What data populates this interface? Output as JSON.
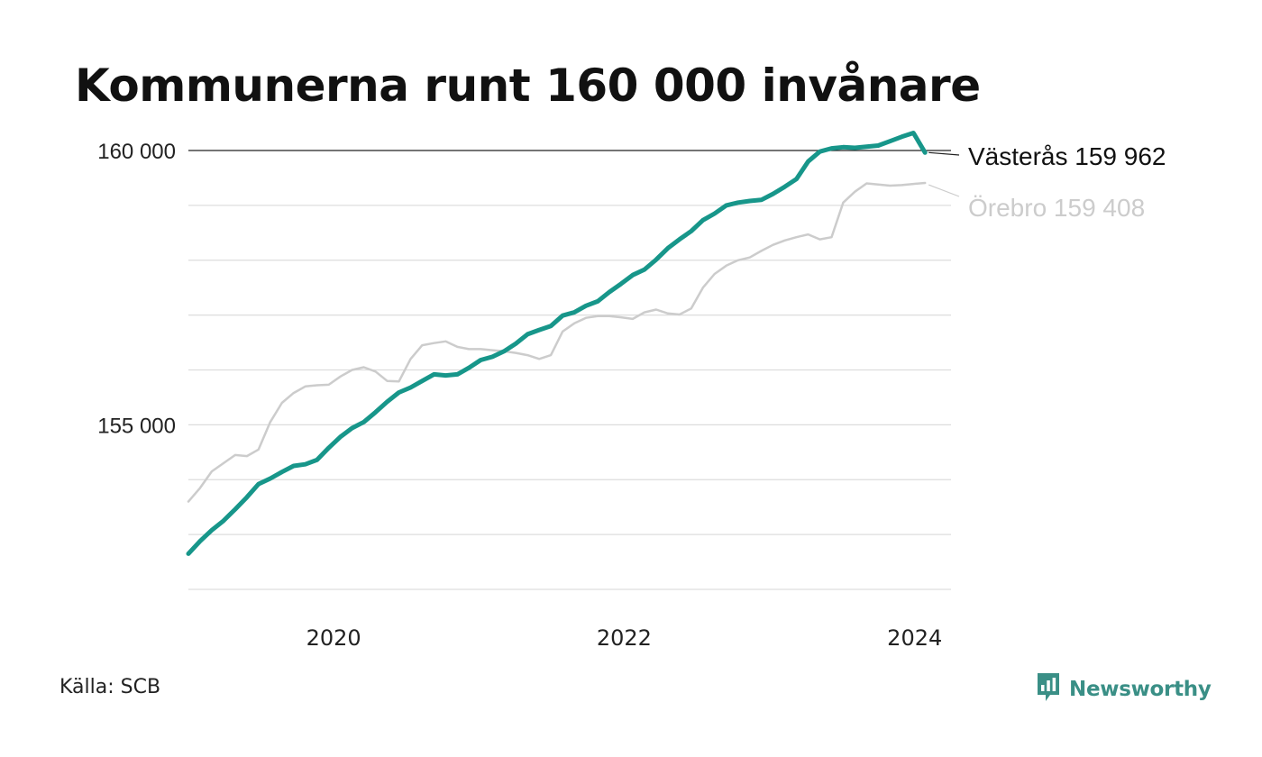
{
  "title": "Kommunerna runt 160 000 invånare",
  "source": "Källa: SCB",
  "brand": {
    "name": "Newsworthy",
    "icon": "newsworthy-logo-icon",
    "color": "#3a8f86"
  },
  "chart_data": {
    "type": "line",
    "title": "Kommunerna runt 160 000 invånare",
    "xlabel": "",
    "ylabel": "",
    "xlim": [
      2019.0,
      2024.25
    ],
    "ylim": [
      152000,
      160000
    ],
    "y_ticks": [
      155000,
      160000
    ],
    "y_tick_labels": [
      "155 000",
      "160 000"
    ],
    "x_ticks": [
      2020,
      2022,
      2024
    ],
    "x_tick_labels": [
      "2020",
      "2022",
      "2024"
    ],
    "grid": true,
    "series": [
      {
        "name": "Örebro",
        "label": "Örebro 159 408",
        "color": "#cccccc",
        "values": [
          153600,
          153850,
          154150,
          154300,
          154450,
          154430,
          154550,
          155050,
          155400,
          155580,
          155700,
          155720,
          155730,
          155880,
          156000,
          156050,
          155970,
          155800,
          155790,
          156200,
          156450,
          156490,
          156520,
          156420,
          156380,
          156380,
          156360,
          156340,
          156310,
          156270,
          156200,
          156270,
          156700,
          156850,
          156950,
          156980,
          156980,
          156960,
          156930,
          157050,
          157100,
          157030,
          157010,
          157120,
          157500,
          157750,
          157900,
          158000,
          158050,
          158170,
          158280,
          158360,
          158420,
          158470,
          158380,
          158420,
          159050,
          159250,
          159400,
          159380,
          159360,
          159370,
          159390,
          159408
        ]
      },
      {
        "name": "Västerås",
        "label": "Västerås 159 962",
        "color": "#17968a",
        "values": [
          152650,
          152880,
          153080,
          153250,
          153460,
          153680,
          153920,
          154020,
          154140,
          154250,
          154280,
          154360,
          154580,
          154780,
          154940,
          155050,
          155230,
          155420,
          155590,
          155680,
          155800,
          155920,
          155900,
          155920,
          156040,
          156180,
          156240,
          156340,
          156480,
          156650,
          156730,
          156800,
          156990,
          157050,
          157170,
          157250,
          157420,
          157570,
          157730,
          157830,
          158010,
          158220,
          158380,
          158530,
          158730,
          158850,
          159000,
          159050,
          159080,
          159100,
          159210,
          159340,
          159480,
          159800,
          159980,
          160040,
          160060,
          160050,
          160070,
          160090,
          160170,
          160250,
          160320,
          159962
        ]
      }
    ]
  }
}
